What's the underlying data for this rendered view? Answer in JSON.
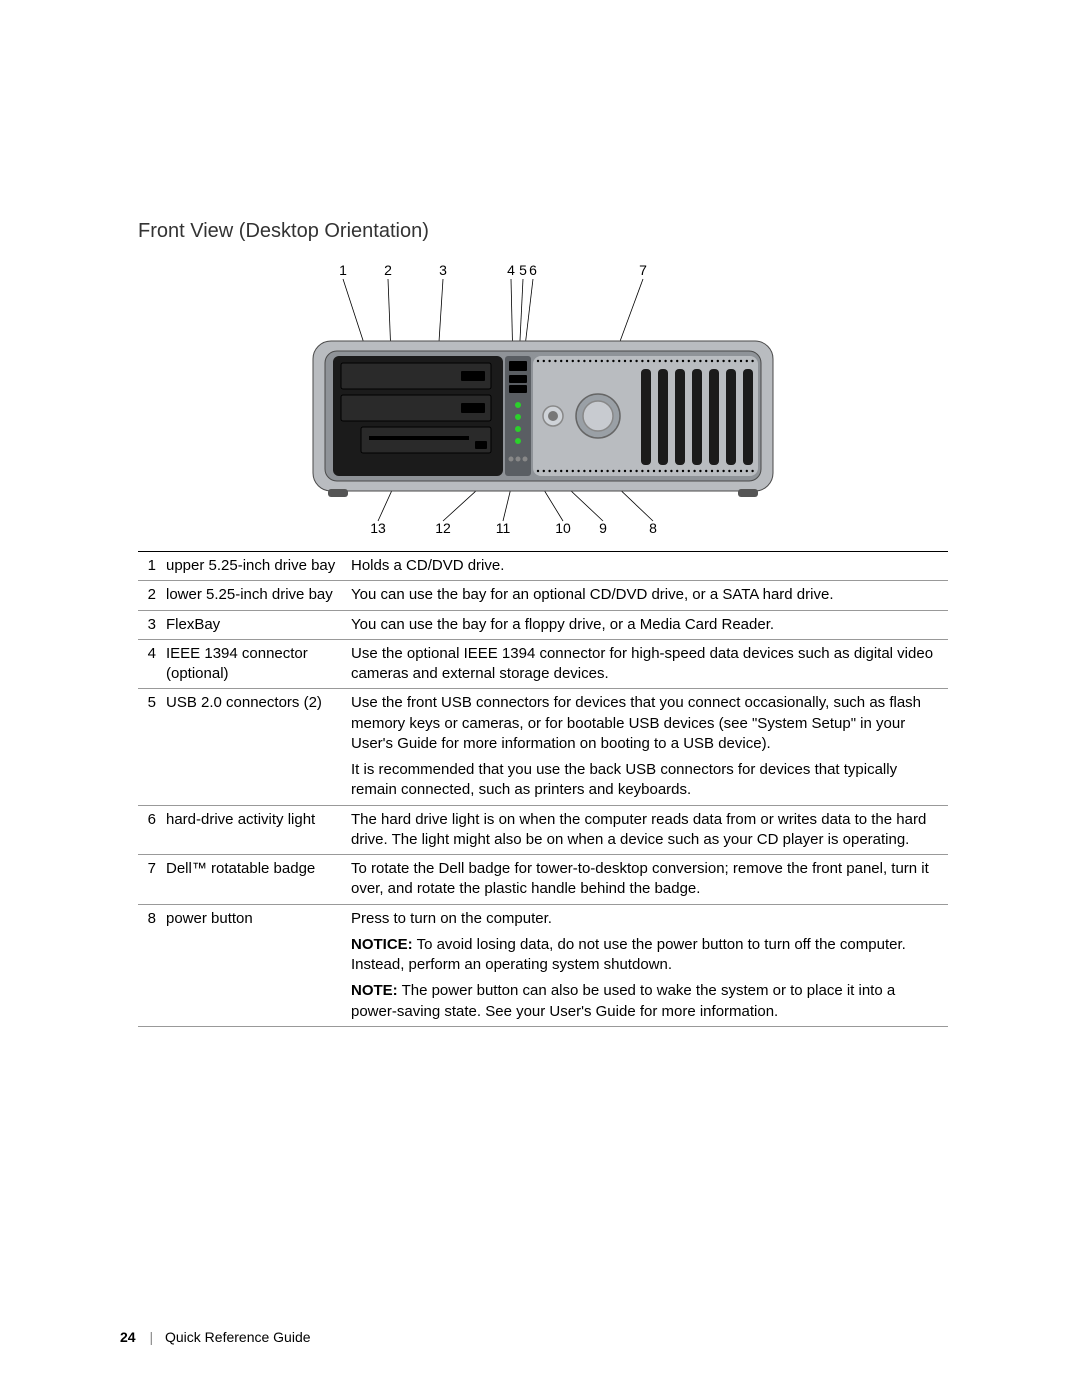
{
  "heading": "Front View (Desktop Orientation)",
  "diagram": {
    "top_labels": [
      "1",
      "2",
      "3",
      "4",
      "5",
      "6",
      "7"
    ],
    "bottom_labels": [
      "13",
      "12",
      "11",
      "10",
      "9",
      "8"
    ],
    "chassis": {
      "body_fill": "#b9bcc0",
      "body_stroke": "#4a4a4a",
      "front_dark": "#1b1b1b",
      "grille_fill": "#1b1b1b",
      "grille_bg": "#b9bcc0",
      "badge_ring": "#9aa0a6",
      "badge_inner": "#c8cbd0",
      "led_green": "#2bd12b"
    }
  },
  "rows": [
    {
      "n": "1",
      "name": "upper 5.25-inch drive bay",
      "desc": [
        "Holds a CD/DVD drive."
      ]
    },
    {
      "n": "2",
      "name": "lower 5.25-inch drive bay",
      "desc": [
        "You can use the bay for an optional CD/DVD drive, or a SATA hard drive."
      ]
    },
    {
      "n": "3",
      "name": "FlexBay",
      "desc": [
        "You can use the bay for a floppy drive, or a Media Card Reader."
      ]
    },
    {
      "n": "4",
      "name": "IEEE 1394 connector (optional)",
      "desc": [
        "Use the optional IEEE 1394 connector for high-speed data devices such as digital video cameras and external storage devices."
      ]
    },
    {
      "n": "5",
      "name": "USB 2.0 connectors (2)",
      "desc": [
        "Use the front USB connectors for devices that you connect occasionally, such as flash memory keys or cameras, or for bootable USB devices (see \"System Setup\" in your User's Guide for more information on booting to a USB device).",
        "It is recommended that you use the back USB connectors for devices that typically remain connected, such as printers and keyboards."
      ]
    },
    {
      "n": "6",
      "name": "hard-drive activity light",
      "desc": [
        "The hard drive light is on when the computer reads data from or writes data to the hard drive. The light might also be on when a device such as your CD player is operating."
      ]
    },
    {
      "n": "7",
      "name": "Dell™ rotatable badge",
      "desc": [
        "To rotate the Dell badge for tower-to-desktop conversion; remove the front panel, turn it over, and rotate the plastic handle behind the badge."
      ]
    },
    {
      "n": "8",
      "name": "power button",
      "desc": [
        "Press to turn on the computer."
      ],
      "notice": "To avoid losing data, do not use the power button to turn off the computer. Instead, perform an operating system shutdown.",
      "note": "The power button can also be used to wake the system or to place it into a power-saving state. See your User's Guide for more information."
    }
  ],
  "footer": {
    "page": "24",
    "title": "Quick Reference Guide"
  },
  "labels": {
    "notice": "NOTICE:",
    "note": "NOTE:"
  }
}
